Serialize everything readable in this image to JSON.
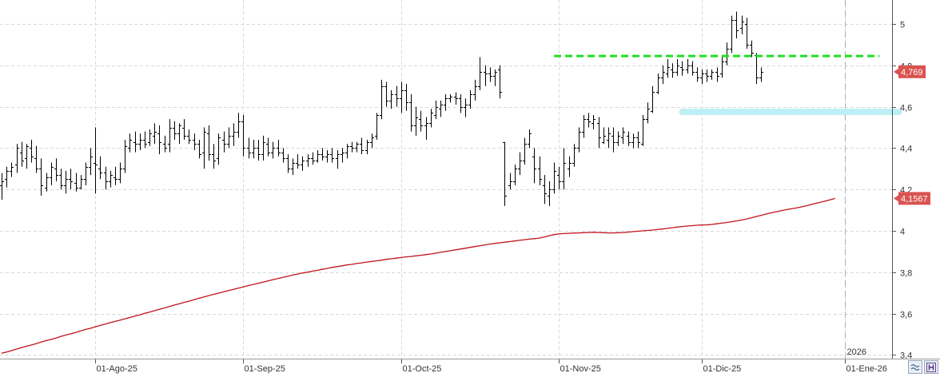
{
  "chart_data": {
    "type": "ohlc",
    "title": "",
    "xlabel": "",
    "ylabel": "",
    "ylim": [
      3.39,
      5.12
    ],
    "y_ticks": [
      3.4,
      3.6,
      3.8,
      4,
      4.2,
      4.4,
      4.6,
      4.8,
      5
    ],
    "y_tick_labels": [
      "3,4",
      "3,6",
      "3,8",
      "4",
      "4,2",
      "4,4",
      "4,6",
      "4,8",
      "5"
    ],
    "x_ticks": [
      {
        "bar": 19,
        "label": "01-Ago-25"
      },
      {
        "bar": 49,
        "label": "01-Sep-25"
      },
      {
        "bar": 81,
        "label": "01-Oct-25"
      },
      {
        "bar": 113,
        "label": "01-Nov-25"
      },
      {
        "bar": 142,
        "label": "01-Dic-25"
      },
      {
        "bar": 171,
        "label": "01-Ene-26"
      }
    ],
    "year_marker": {
      "bar": 171,
      "label": "2026"
    },
    "grid": true,
    "colors": {
      "bars": "#000000",
      "moving_average": "#c0141a",
      "resistance": "#22dd22",
      "support_zone": "#bdf0f4",
      "price_tag": "#d9534f",
      "grid": "#d9d9d9"
    },
    "series": [
      {
        "type": "ohlc",
        "ohlc": [
          [
            4.22,
            4.28,
            4.15,
            4.24
          ],
          [
            4.25,
            4.31,
            4.21,
            4.29
          ],
          [
            4.29,
            4.33,
            4.26,
            4.31
          ],
          [
            4.32,
            4.42,
            4.28,
            4.4
          ],
          [
            4.38,
            4.43,
            4.31,
            4.34
          ],
          [
            4.35,
            4.42,
            4.3,
            4.41
          ],
          [
            4.4,
            4.44,
            4.33,
            4.36
          ],
          [
            4.35,
            4.41,
            4.28,
            4.3
          ],
          [
            4.3,
            4.35,
            4.17,
            4.22
          ],
          [
            4.21,
            4.28,
            4.19,
            4.26
          ],
          [
            4.26,
            4.33,
            4.22,
            4.31
          ],
          [
            4.3,
            4.35,
            4.24,
            4.27
          ],
          [
            4.27,
            4.3,
            4.2,
            4.22
          ],
          [
            4.22,
            4.29,
            4.18,
            4.25
          ],
          [
            4.25,
            4.3,
            4.2,
            4.24
          ],
          [
            4.23,
            4.28,
            4.19,
            4.21
          ],
          [
            4.21,
            4.27,
            4.2,
            4.25
          ],
          [
            4.25,
            4.33,
            4.22,
            4.31
          ],
          [
            4.31,
            4.4,
            4.27,
            4.36
          ],
          [
            4.33,
            4.5,
            4.18,
            4.32
          ],
          [
            4.3,
            4.36,
            4.25,
            4.28
          ],
          [
            4.28,
            4.31,
            4.2,
            4.24
          ],
          [
            4.24,
            4.29,
            4.21,
            4.27
          ],
          [
            4.26,
            4.31,
            4.22,
            4.25
          ],
          [
            4.25,
            4.33,
            4.23,
            4.3
          ],
          [
            4.3,
            4.44,
            4.28,
            4.41
          ],
          [
            4.4,
            4.47,
            4.38,
            4.44
          ],
          [
            4.43,
            4.48,
            4.38,
            4.42
          ],
          [
            4.42,
            4.47,
            4.39,
            4.44
          ],
          [
            4.44,
            4.48,
            4.4,
            4.42
          ],
          [
            4.43,
            4.49,
            4.41,
            4.47
          ],
          [
            4.46,
            4.52,
            4.42,
            4.48
          ],
          [
            4.47,
            4.51,
            4.37,
            4.43
          ],
          [
            4.42,
            4.46,
            4.38,
            4.4
          ],
          [
            4.42,
            4.54,
            4.38,
            4.5
          ],
          [
            4.5,
            4.53,
            4.44,
            4.47
          ],
          [
            4.47,
            4.52,
            4.42,
            4.51
          ],
          [
            4.5,
            4.54,
            4.44,
            4.46
          ],
          [
            4.46,
            4.49,
            4.42,
            4.44
          ],
          [
            4.44,
            4.47,
            4.39,
            4.42
          ],
          [
            4.42,
            4.44,
            4.35,
            4.37
          ],
          [
            4.38,
            4.5,
            4.3,
            4.48
          ],
          [
            4.47,
            4.51,
            4.34,
            4.37
          ],
          [
            4.37,
            4.42,
            4.3,
            4.34
          ],
          [
            4.35,
            4.47,
            4.32,
            4.45
          ],
          [
            4.44,
            4.48,
            4.38,
            4.42
          ],
          [
            4.42,
            4.5,
            4.4,
            4.46
          ],
          [
            4.46,
            4.52,
            4.41,
            4.48
          ],
          [
            4.48,
            4.57,
            4.45,
            4.53
          ],
          [
            4.53,
            4.56,
            4.36,
            4.4
          ],
          [
            4.4,
            4.45,
            4.35,
            4.38
          ],
          [
            4.38,
            4.44,
            4.35,
            4.4
          ],
          [
            4.4,
            4.44,
            4.34,
            4.37
          ],
          [
            4.37,
            4.46,
            4.34,
            4.43
          ],
          [
            4.42,
            4.45,
            4.36,
            4.38
          ],
          [
            4.38,
            4.43,
            4.35,
            4.4
          ],
          [
            4.4,
            4.44,
            4.36,
            4.38
          ],
          [
            4.38,
            4.4,
            4.33,
            4.35
          ],
          [
            4.35,
            4.37,
            4.28,
            4.3
          ],
          [
            4.3,
            4.35,
            4.27,
            4.33
          ],
          [
            4.33,
            4.37,
            4.3,
            4.32
          ],
          [
            4.32,
            4.36,
            4.29,
            4.34
          ],
          [
            4.34,
            4.37,
            4.31,
            4.35
          ],
          [
            4.35,
            4.38,
            4.32,
            4.34
          ],
          [
            4.34,
            4.39,
            4.33,
            4.37
          ],
          [
            4.37,
            4.4,
            4.34,
            4.36
          ],
          [
            4.36,
            4.39,
            4.33,
            4.37
          ],
          [
            4.37,
            4.4,
            4.33,
            4.35
          ],
          [
            4.35,
            4.39,
            4.3,
            4.37
          ],
          [
            4.37,
            4.4,
            4.33,
            4.38
          ],
          [
            4.38,
            4.42,
            4.35,
            4.41
          ],
          [
            4.41,
            4.43,
            4.38,
            4.4
          ],
          [
            4.4,
            4.43,
            4.38,
            4.42
          ],
          [
            4.42,
            4.45,
            4.37,
            4.39
          ],
          [
            4.39,
            4.44,
            4.37,
            4.43
          ],
          [
            4.43,
            4.47,
            4.4,
            4.45
          ],
          [
            4.46,
            4.57,
            4.44,
            4.56
          ],
          [
            4.56,
            4.73,
            4.54,
            4.7
          ],
          [
            4.7,
            4.72,
            4.6,
            4.63
          ],
          [
            4.63,
            4.68,
            4.59,
            4.66
          ],
          [
            4.66,
            4.7,
            4.6,
            4.64
          ],
          [
            4.64,
            4.72,
            4.57,
            4.68
          ],
          [
            4.68,
            4.71,
            4.58,
            4.62
          ],
          [
            4.62,
            4.66,
            4.48,
            4.51
          ],
          [
            4.51,
            4.6,
            4.46,
            4.55
          ],
          [
            4.54,
            4.58,
            4.48,
            4.51
          ],
          [
            4.51,
            4.55,
            4.44,
            4.52
          ],
          [
            4.52,
            4.59,
            4.5,
            4.57
          ],
          [
            4.56,
            4.63,
            4.54,
            4.6
          ],
          [
            4.59,
            4.63,
            4.55,
            4.61
          ],
          [
            4.61,
            4.66,
            4.58,
            4.64
          ],
          [
            4.64,
            4.66,
            4.62,
            4.65
          ],
          [
            4.65,
            4.67,
            4.61,
            4.64
          ],
          [
            4.64,
            4.66,
            4.57,
            4.6
          ],
          [
            4.6,
            4.64,
            4.55,
            4.61
          ],
          [
            4.61,
            4.68,
            4.59,
            4.66
          ],
          [
            4.66,
            4.73,
            4.63,
            4.7
          ],
          [
            4.7,
            4.84,
            4.68,
            4.77
          ],
          [
            4.77,
            4.8,
            4.7,
            4.76
          ],
          [
            4.76,
            4.79,
            4.72,
            4.75
          ],
          [
            4.75,
            4.78,
            4.7,
            4.77
          ],
          [
            4.78,
            4.8,
            4.64,
            4.67
          ],
          [
            4.43,
            4.43,
            4.12,
            4.17
          ],
          [
            4.22,
            4.28,
            4.2,
            4.24
          ],
          [
            4.24,
            4.32,
            4.22,
            4.3
          ],
          [
            4.3,
            4.38,
            4.27,
            4.34
          ],
          [
            4.34,
            4.45,
            4.32,
            4.42
          ],
          [
            4.42,
            4.49,
            4.4,
            4.47
          ],
          [
            4.36,
            4.4,
            4.23,
            4.3
          ],
          [
            4.3,
            4.36,
            4.22,
            4.25
          ],
          [
            4.22,
            4.27,
            4.13,
            4.18
          ],
          [
            4.17,
            4.24,
            4.12,
            4.2
          ],
          [
            4.2,
            4.33,
            4.18,
            4.29
          ],
          [
            4.27,
            4.31,
            4.2,
            4.24
          ],
          [
            4.24,
            4.4,
            4.2,
            4.33
          ],
          [
            4.3,
            4.36,
            4.26,
            4.33
          ],
          [
            4.33,
            4.42,
            4.31,
            4.4
          ],
          [
            4.4,
            4.5,
            4.38,
            4.48
          ],
          [
            4.48,
            4.56,
            4.45,
            4.54
          ],
          [
            4.54,
            4.57,
            4.5,
            4.53
          ],
          [
            4.52,
            4.56,
            4.49,
            4.54
          ],
          [
            4.52,
            4.55,
            4.4,
            4.45
          ],
          [
            4.43,
            4.5,
            4.42,
            4.46
          ],
          [
            4.44,
            4.5,
            4.4,
            4.47
          ],
          [
            4.46,
            4.5,
            4.38,
            4.43
          ],
          [
            4.43,
            4.48,
            4.41,
            4.46
          ],
          [
            4.45,
            4.5,
            4.42,
            4.48
          ],
          [
            4.46,
            4.48,
            4.41,
            4.43
          ],
          [
            4.43,
            4.47,
            4.4,
            4.45
          ],
          [
            4.45,
            4.48,
            4.4,
            4.43
          ],
          [
            4.42,
            4.56,
            4.41,
            4.54
          ],
          [
            4.54,
            4.62,
            4.52,
            4.59
          ],
          [
            4.58,
            4.7,
            4.57,
            4.67
          ],
          [
            4.67,
            4.76,
            4.66,
            4.74
          ],
          [
            4.74,
            4.8,
            4.71,
            4.77
          ],
          [
            4.76,
            4.83,
            4.74,
            4.79
          ],
          [
            4.78,
            4.81,
            4.74,
            4.77
          ],
          [
            4.77,
            4.83,
            4.75,
            4.8
          ],
          [
            4.79,
            4.82,
            4.75,
            4.78
          ],
          [
            4.78,
            4.83,
            4.76,
            4.8
          ],
          [
            4.8,
            4.82,
            4.75,
            4.77
          ],
          [
            4.77,
            4.79,
            4.72,
            4.74
          ],
          [
            4.74,
            4.78,
            4.71,
            4.76
          ],
          [
            4.76,
            4.78,
            4.72,
            4.75
          ],
          [
            4.75,
            4.78,
            4.73,
            4.77
          ],
          [
            4.77,
            4.79,
            4.72,
            4.75
          ],
          [
            4.76,
            4.85,
            4.74,
            4.82
          ],
          [
            4.82,
            4.91,
            4.8,
            4.88
          ],
          [
            4.88,
            5.04,
            4.86,
            5.02
          ],
          [
            5.02,
            5.06,
            4.93,
            4.97
          ],
          [
            4.98,
            5.04,
            4.95,
            5.01
          ],
          [
            5.0,
            5.03,
            4.88,
            4.9
          ],
          [
            4.9,
            4.92,
            4.84,
            4.86
          ],
          [
            4.85,
            4.86,
            4.71,
            4.74
          ],
          [
            4.74,
            4.79,
            4.72,
            4.769
          ]
        ]
      },
      {
        "type": "line",
        "role": "moving-average",
        "values": [
          3.408,
          3.414,
          3.421,
          3.428,
          3.435,
          3.442,
          3.448,
          3.455,
          3.462,
          3.469,
          3.475,
          3.482,
          3.489,
          3.496,
          3.502,
          3.509,
          3.516,
          3.523,
          3.529,
          3.536,
          3.543,
          3.549,
          3.556,
          3.562,
          3.568,
          3.575,
          3.581,
          3.588,
          3.594,
          3.601,
          3.607,
          3.614,
          3.621,
          3.627,
          3.634,
          3.641,
          3.647,
          3.654,
          3.66,
          3.667,
          3.674,
          3.68,
          3.687,
          3.693,
          3.699,
          3.705,
          3.711,
          3.717,
          3.723,
          3.729,
          3.735,
          3.741,
          3.746,
          3.752,
          3.758,
          3.764,
          3.769,
          3.775,
          3.78,
          3.786,
          3.791,
          3.796,
          3.8,
          3.805,
          3.809,
          3.814,
          3.818,
          3.823,
          3.827,
          3.831,
          3.835,
          3.838,
          3.842,
          3.845,
          3.849,
          3.852,
          3.855,
          3.858,
          3.862,
          3.865,
          3.868,
          3.871,
          3.874,
          3.876,
          3.879,
          3.882,
          3.885,
          3.888,
          3.892,
          3.896,
          3.9,
          3.904,
          3.908,
          3.912,
          3.916,
          3.92,
          3.924,
          3.928,
          3.932,
          3.936,
          3.939,
          3.942,
          3.945,
          3.948,
          3.951,
          3.954,
          3.957,
          3.96,
          3.962,
          3.965,
          3.97,
          3.976,
          3.982,
          3.985,
          3.987,
          3.988,
          3.989,
          3.99,
          3.991,
          3.992,
          3.993,
          3.992,
          3.991,
          3.99,
          3.99,
          3.991,
          3.992,
          3.994,
          3.996,
          3.998,
          4.0,
          4.002,
          4.004,
          4.006,
          4.009,
          4.012,
          4.015,
          4.018,
          4.021,
          4.023,
          4.025,
          4.027,
          4.028,
          4.029,
          4.031,
          4.034,
          4.037,
          4.04,
          4.044,
          4.048,
          4.052,
          4.057,
          4.063,
          4.069,
          4.075,
          4.081,
          4.087,
          4.092,
          4.097,
          4.102,
          4.106,
          4.11,
          4.115,
          4.12,
          4.126,
          4.132,
          4.138,
          4.144,
          4.15,
          4.1567
        ]
      }
    ],
    "annotations": [
      {
        "type": "horizontal-line",
        "value": 4.845,
        "from_bar": 112,
        "to_bar": 178,
        "style": "dashed",
        "color": "#22dd22"
      },
      {
        "type": "horizontal-band",
        "value": 4.575,
        "from_bar": 138,
        "to_bar": 182,
        "color": "#bdf0f4"
      }
    ],
    "price_tags": [
      {
        "label": "4,769",
        "value": 4.769
      },
      {
        "label": "4,1567",
        "value": 4.1567
      }
    ]
  },
  "toolbar": {
    "wave_icon": "approx-wave-icon",
    "h_icon": "h-panel-icon"
  }
}
